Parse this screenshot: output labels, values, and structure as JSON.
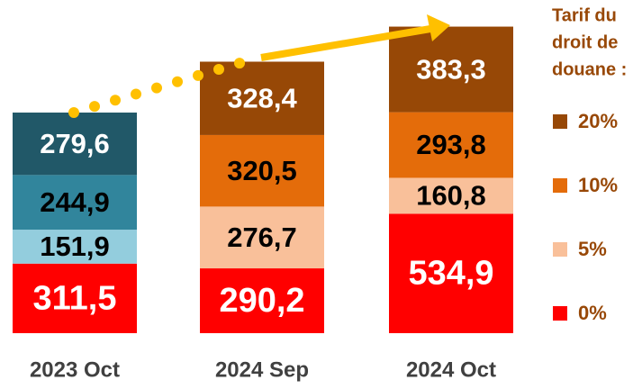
{
  "chart_data": {
    "type": "stacked-bar",
    "legend_title": [
      "Tarif du",
      "droit de",
      "douane :"
    ],
    "categories": [
      "2023 Oct",
      "2024 Sep",
      "2024 Oct"
    ],
    "ylim": [
      0,
      1492
    ],
    "series": [
      {
        "name": "0%",
        "color": "#ff0000",
        "colors": [
          "#ff0000",
          "#ff0000",
          "#ff0000"
        ],
        "label_color": "#ffffff",
        "values": [
          311.5,
          290.2,
          534.9
        ],
        "value_labels": [
          "311,5",
          "290,2",
          "534,9"
        ]
      },
      {
        "name": "5%",
        "color": "#f9c09a",
        "colors": [
          "#93cddd",
          "#f9c09a",
          "#f9c09a"
        ],
        "label_color": "#000000",
        "values": [
          151.9,
          276.7,
          160.8
        ],
        "value_labels": [
          "151,9",
          "276,7",
          "160,8"
        ]
      },
      {
        "name": "10%",
        "color": "#e46c0a",
        "colors": [
          "#31859c",
          "#e46c0a",
          "#e46c0a"
        ],
        "label_color": "#000000",
        "values": [
          244.9,
          320.5,
          293.8
        ],
        "value_labels": [
          "244,9",
          "320,5",
          "293,8"
        ]
      },
      {
        "name": "20%",
        "color": "#974806",
        "colors": [
          "#215868",
          "#974806",
          "#974806"
        ],
        "label_color": "#ffffff",
        "values": [
          279.6,
          328.4,
          383.3
        ],
        "value_labels": [
          "279,6",
          "328,4",
          "383,3"
        ]
      }
    ]
  }
}
